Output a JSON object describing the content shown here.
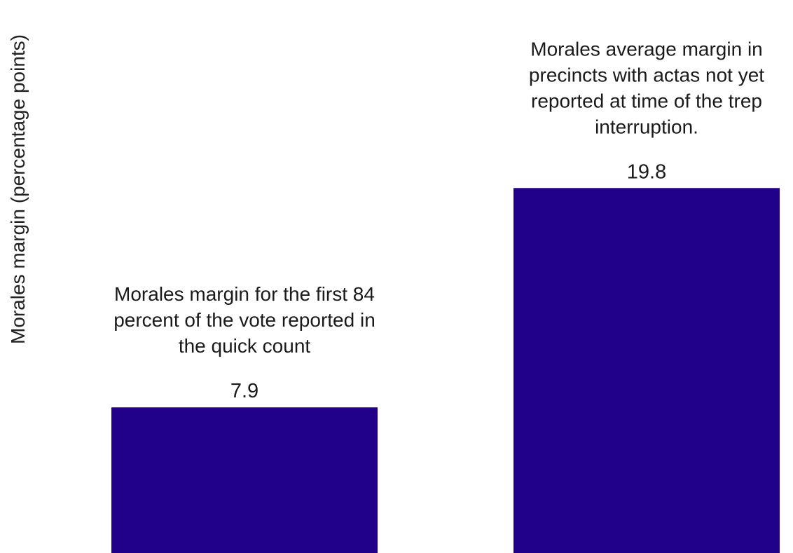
{
  "chart_data": {
    "type": "bar",
    "ylabel": "Morales margin (percentage points)",
    "categories": [
      "Morales margin for the first 84 percent of the vote reported in the quick count",
      "Morales average margin in precincts with actas not yet reported at time of the trep interruption."
    ],
    "annotations": [
      [
        "Morales margin for the first 84",
        "percent of the vote reported in",
        "the quick count"
      ],
      [
        "Morales average margin in",
        "precincts with actas not yet",
        "reported at time of the trep",
        "interruption."
      ]
    ],
    "values": [
      7.9,
      19.8
    ],
    "value_labels": [
      "7.9",
      "19.8"
    ],
    "bar_color": "#21008a",
    "grid": false,
    "axes_visible": false
  }
}
